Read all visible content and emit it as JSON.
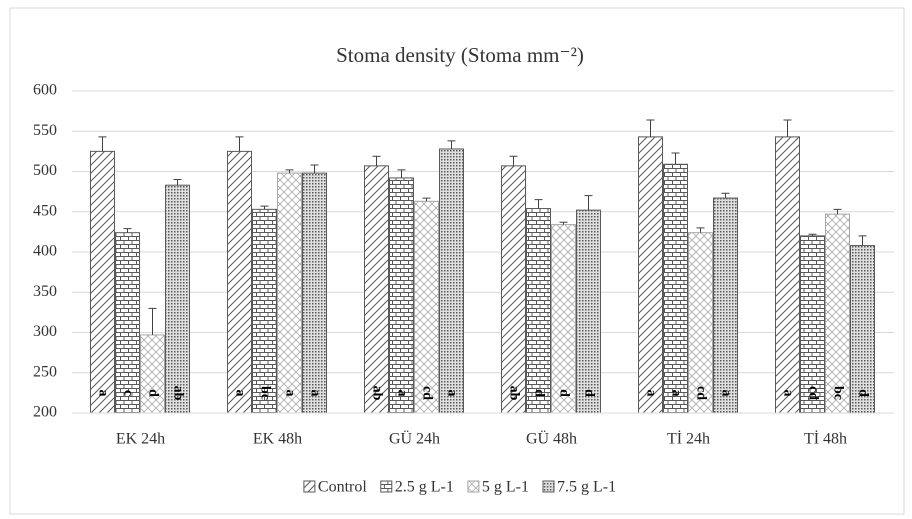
{
  "chart_data": {
    "type": "bar",
    "title": "Stoma density (Stoma mm⁻²)",
    "categories": [
      "EK 24h",
      "EK 48h",
      "GÜ 24h",
      "GÜ 48h",
      "Tİ 24h",
      "Tİ 48h"
    ],
    "series": [
      {
        "name": "Control",
        "color": "#595959",
        "values": [
          525,
          525,
          507,
          507,
          543,
          543
        ],
        "errors": [
          18,
          18,
          12,
          12,
          21,
          21
        ],
        "letters": [
          "a",
          "a",
          "ab",
          "ab",
          "a",
          "a"
        ]
      },
      {
        "name": "2.5 g L-1",
        "color": "#595959",
        "values": [
          424,
          453,
          492,
          454,
          509,
          420
        ],
        "errors": [
          5,
          4,
          10,
          11,
          14,
          2
        ],
        "letters": [
          "c",
          "bc",
          "a",
          "d",
          "a",
          "cd"
        ]
      },
      {
        "name": "5 g L-1",
        "color": "#a6a6a6",
        "values": [
          297,
          498,
          463,
          434,
          424,
          447
        ],
        "errors": [
          33,
          4,
          4,
          3,
          6,
          6
        ],
        "letters": [
          "d",
          "a",
          "cd",
          "d",
          "cd",
          "bc"
        ]
      },
      {
        "name": "7.5 g L-1",
        "color": "#595959",
        "values": [
          483,
          498,
          528,
          452,
          467,
          408
        ],
        "errors": [
          7,
          10,
          10,
          18,
          6,
          12
        ],
        "letters": [
          "ab",
          "a",
          "a",
          "d",
          "a",
          "d"
        ]
      }
    ],
    "ylim": [
      200,
      600
    ],
    "yticks": [
      200,
      250,
      300,
      350,
      400,
      450,
      500,
      550,
      600
    ],
    "grid": true,
    "legend": "bottom"
  }
}
